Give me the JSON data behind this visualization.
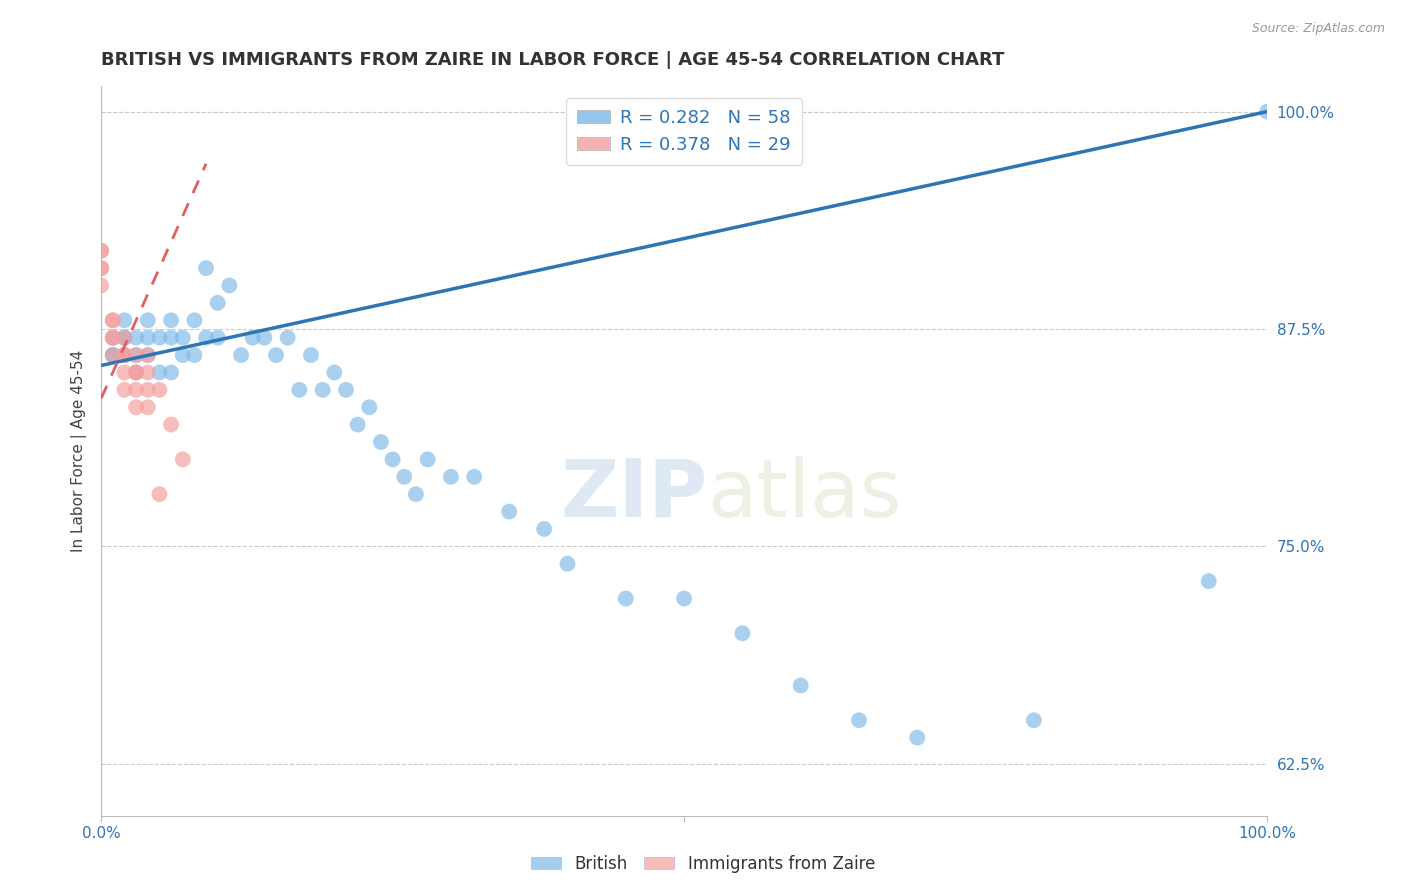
{
  "title": "BRITISH VS IMMIGRANTS FROM ZAIRE IN LABOR FORCE | AGE 45-54 CORRELATION CHART",
  "source": "Source: ZipAtlas.com",
  "ylabel": "In Labor Force | Age 45-54",
  "xlim": [
    0.0,
    1.0
  ],
  "ylim": [
    0.595,
    1.015
  ],
  "yticks": [
    0.625,
    0.75,
    0.875,
    1.0
  ],
  "yticklabels": [
    "62.5%",
    "75.0%",
    "87.5%",
    "100.0%"
  ],
  "legend_r_british": "R = 0.282",
  "legend_n_british": "N = 58",
  "legend_r_zaire": "R = 0.378",
  "legend_n_zaire": "N = 29",
  "blue_color": "#7DB8E8",
  "pink_color": "#F4A0A0",
  "blue_line_color": "#2E75B6",
  "pink_line_color": "#E06060",
  "watermark_zip": "ZIP",
  "watermark_atlas": "atlas",
  "british_x": [
    0.01,
    0.01,
    0.01,
    0.02,
    0.02,
    0.02,
    0.02,
    0.03,
    0.03,
    0.03,
    0.04,
    0.04,
    0.04,
    0.05,
    0.05,
    0.06,
    0.06,
    0.06,
    0.07,
    0.07,
    0.08,
    0.08,
    0.09,
    0.09,
    0.1,
    0.1,
    0.11,
    0.12,
    0.13,
    0.14,
    0.15,
    0.16,
    0.17,
    0.18,
    0.19,
    0.2,
    0.21,
    0.22,
    0.23,
    0.24,
    0.25,
    0.26,
    0.27,
    0.28,
    0.3,
    0.32,
    0.35,
    0.38,
    0.4,
    0.45,
    0.5,
    0.55,
    0.6,
    0.65,
    0.7,
    0.8,
    0.95,
    1.0
  ],
  "british_y": [
    0.86,
    0.86,
    0.87,
    0.86,
    0.87,
    0.87,
    0.88,
    0.85,
    0.86,
    0.87,
    0.86,
    0.87,
    0.88,
    0.85,
    0.87,
    0.85,
    0.87,
    0.88,
    0.86,
    0.87,
    0.86,
    0.88,
    0.91,
    0.87,
    0.89,
    0.87,
    0.9,
    0.86,
    0.87,
    0.87,
    0.86,
    0.87,
    0.84,
    0.86,
    0.84,
    0.85,
    0.84,
    0.82,
    0.83,
    0.81,
    0.8,
    0.79,
    0.78,
    0.8,
    0.79,
    0.79,
    0.77,
    0.76,
    0.74,
    0.72,
    0.72,
    0.7,
    0.67,
    0.65,
    0.64,
    0.65,
    0.73,
    1.0
  ],
  "zaire_x": [
    0.0,
    0.0,
    0.0,
    0.0,
    0.0,
    0.01,
    0.01,
    0.01,
    0.01,
    0.01,
    0.02,
    0.02,
    0.02,
    0.02,
    0.02,
    0.02,
    0.03,
    0.03,
    0.03,
    0.03,
    0.03,
    0.04,
    0.04,
    0.04,
    0.04,
    0.05,
    0.05,
    0.06,
    0.07
  ],
  "zaire_y": [
    0.92,
    0.91,
    0.92,
    0.91,
    0.9,
    0.88,
    0.87,
    0.88,
    0.86,
    0.87,
    0.86,
    0.87,
    0.86,
    0.86,
    0.85,
    0.84,
    0.85,
    0.86,
    0.85,
    0.84,
    0.83,
    0.86,
    0.85,
    0.84,
    0.83,
    0.84,
    0.78,
    0.82,
    0.8
  ]
}
